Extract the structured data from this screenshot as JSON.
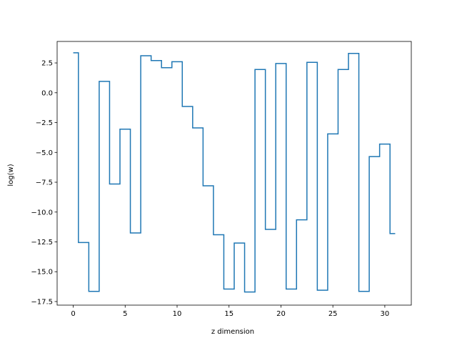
{
  "chart_data": {
    "type": "line",
    "drawstyle": "steps-mid",
    "title": "",
    "xlabel": "z dimension",
    "ylabel": "log(w)",
    "xlim": [
      -1.55,
      32.55
    ],
    "ylim": [
      -17.8,
      4.3
    ],
    "xticks": [
      0,
      5,
      10,
      15,
      20,
      25,
      30
    ],
    "yticks": [
      2.5,
      0.0,
      -2.5,
      -5.0,
      -7.5,
      -10.0,
      -12.5,
      -15.0,
      -17.5
    ],
    "xtick_labels": [
      "0",
      "5",
      "10",
      "15",
      "20",
      "25",
      "30"
    ],
    "ytick_labels": [
      "2.5",
      "0.0",
      "−2.5",
      "−5.0",
      "−7.5",
      "−10.0",
      "−12.5",
      "−15.0",
      "−17.5"
    ],
    "grid": false,
    "line_color": "#1f77b4",
    "series": [
      {
        "x": [
          0,
          1,
          2,
          3,
          4,
          5,
          6,
          7,
          8,
          9,
          10,
          11,
          12,
          13,
          14,
          15,
          16,
          17,
          18,
          19,
          20,
          21,
          22,
          23,
          24,
          25,
          26,
          27,
          28,
          29,
          30,
          31
        ],
        "y": [
          3.35,
          -12.55,
          -16.65,
          0.95,
          -7.65,
          -3.05,
          -11.75,
          3.1,
          2.7,
          2.1,
          2.6,
          -1.15,
          -2.95,
          -7.8,
          -11.9,
          -16.45,
          -12.6,
          -16.7,
          1.95,
          -11.45,
          2.45,
          -16.45,
          -10.65,
          2.55,
          -16.55,
          -3.45,
          1.95,
          3.3,
          -16.65,
          -5.35,
          -4.3,
          -11.8
        ]
      }
    ]
  }
}
